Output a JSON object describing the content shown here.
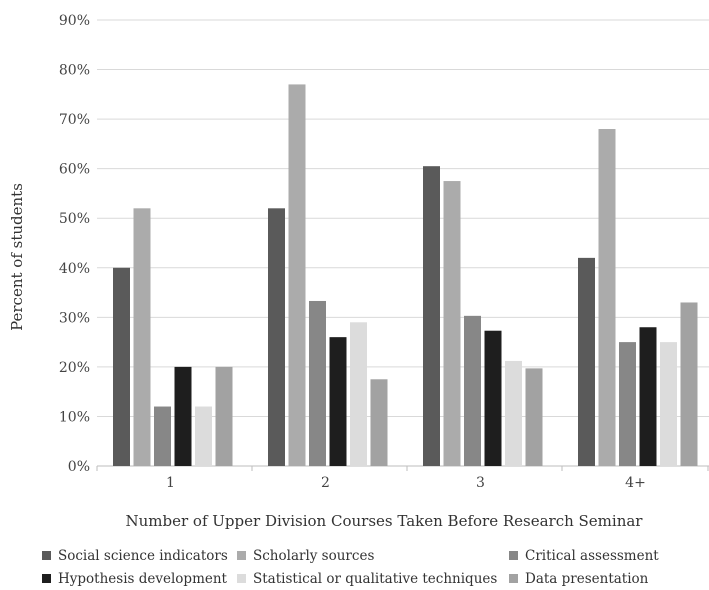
{
  "chart_data": {
    "type": "bar",
    "title": "",
    "xlabel": "Number of Upper Division Courses Taken Before Research Seminar",
    "ylabel": "Percent of students",
    "categories": [
      "1",
      "2",
      "3",
      "4+"
    ],
    "ylim": [
      0,
      90
    ],
    "yticks": [
      "0%",
      "10%",
      "20%",
      "30%",
      "40%",
      "50%",
      "60%",
      "70%",
      "80%",
      "90%"
    ],
    "grid": true,
    "legend_position": "bottom",
    "series": [
      {
        "name": "Social science indicators",
        "color": "#5a5a5a",
        "values": [
          40,
          52,
          60.5,
          42
        ]
      },
      {
        "name": "Scholarly sources",
        "color": "#ababab",
        "values": [
          52,
          77,
          57.5,
          68
        ]
      },
      {
        "name": "Critical assessment",
        "color": "#878787",
        "values": [
          12,
          33.3,
          30.3,
          25
        ]
      },
      {
        "name": "Hypothesis development",
        "color": "#1e1e1e",
        "values": [
          20,
          26,
          27.3,
          28
        ]
      },
      {
        "name": "Statistical or qualitative techniques",
        "color": "#dcdcdc",
        "values": [
          12,
          29,
          21.2,
          25
        ]
      },
      {
        "name": "Data presentation",
        "color": "#a2a2a2",
        "values": [
          20,
          17.5,
          19.7,
          33
        ]
      }
    ]
  }
}
